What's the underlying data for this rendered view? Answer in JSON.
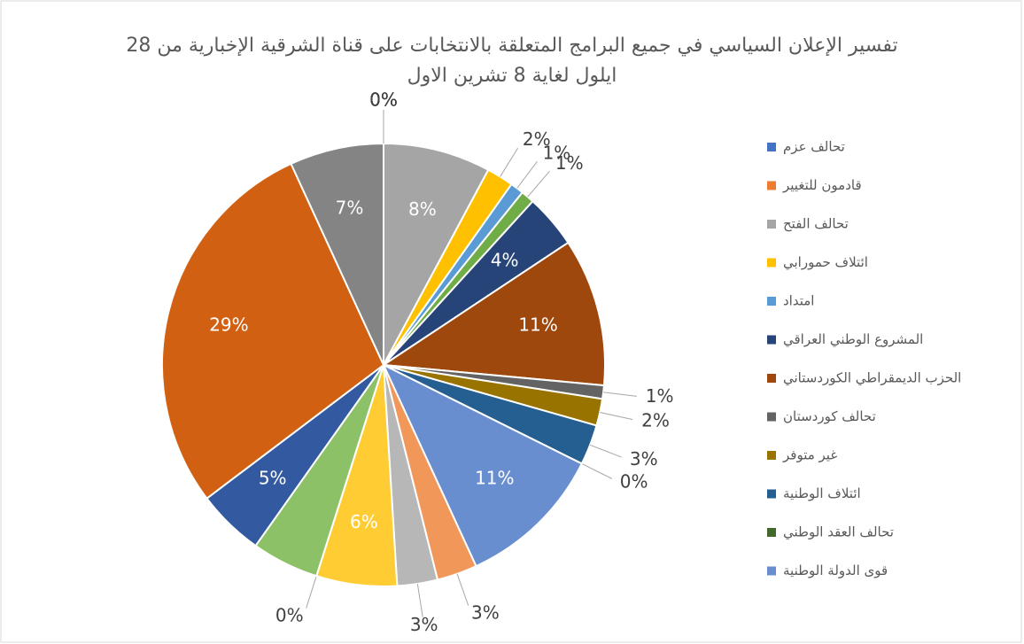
{
  "chart_data": {
    "type": "pie",
    "title": [
      "تفسير الإعلان السياسي في جميع البرامج المتعلقة بالانتخابات على قناة الشرقية الإخبارية من 28",
      "ايلول لغاية 8 تشرين الاول"
    ],
    "categories": [
      "تحالف عزم",
      "قادمون للتغيير",
      "تحالف الفتح",
      "ائتلاف حمورابي",
      "امتداد",
      null,
      "المشروع الوطني العراقي",
      "الحزب الديمقراطي الكوردستاني",
      "تحالف كوردستان",
      "غير متوفر",
      "ائتلاف الوطنية",
      "تحالف العقد الوطني",
      "قوى الدولة الوطنية",
      null,
      null,
      null,
      null,
      null,
      null,
      null,
      null,
      null,
      null
    ],
    "values": [
      0,
      0,
      8,
      2,
      1,
      1,
      4,
      11,
      1,
      2,
      3,
      0,
      11,
      3,
      3,
      6,
      0,
      5,
      5,
      29,
      7,
      0,
      0
    ],
    "value_labels": [
      "0%",
      null,
      "8%",
      "2%",
      "1%",
      "1%",
      "4%",
      "11%",
      "1%",
      "2%",
      "3%",
      "0%",
      "11%",
      "3%",
      "3%",
      "6%",
      "0%",
      null,
      "5%",
      "29%",
      "7%",
      "0%",
      "0%"
    ],
    "colors": [
      "#4472c4",
      "#ed7d31",
      "#a5a5a5",
      "#ffc000",
      "#5b9bd5",
      "#70ad47",
      "#264478",
      "#9e480e",
      "#636363",
      "#997300",
      "#255e91",
      "#43682b",
      "#698ed0",
      "#f1975a",
      "#b7b7b7",
      "#ffcd33",
      "#7cafdd",
      "#8cc168",
      "#335aa1",
      "#d26012",
      "#848484",
      "#cca300",
      "#2e75b6"
    ],
    "legend": "right"
  }
}
